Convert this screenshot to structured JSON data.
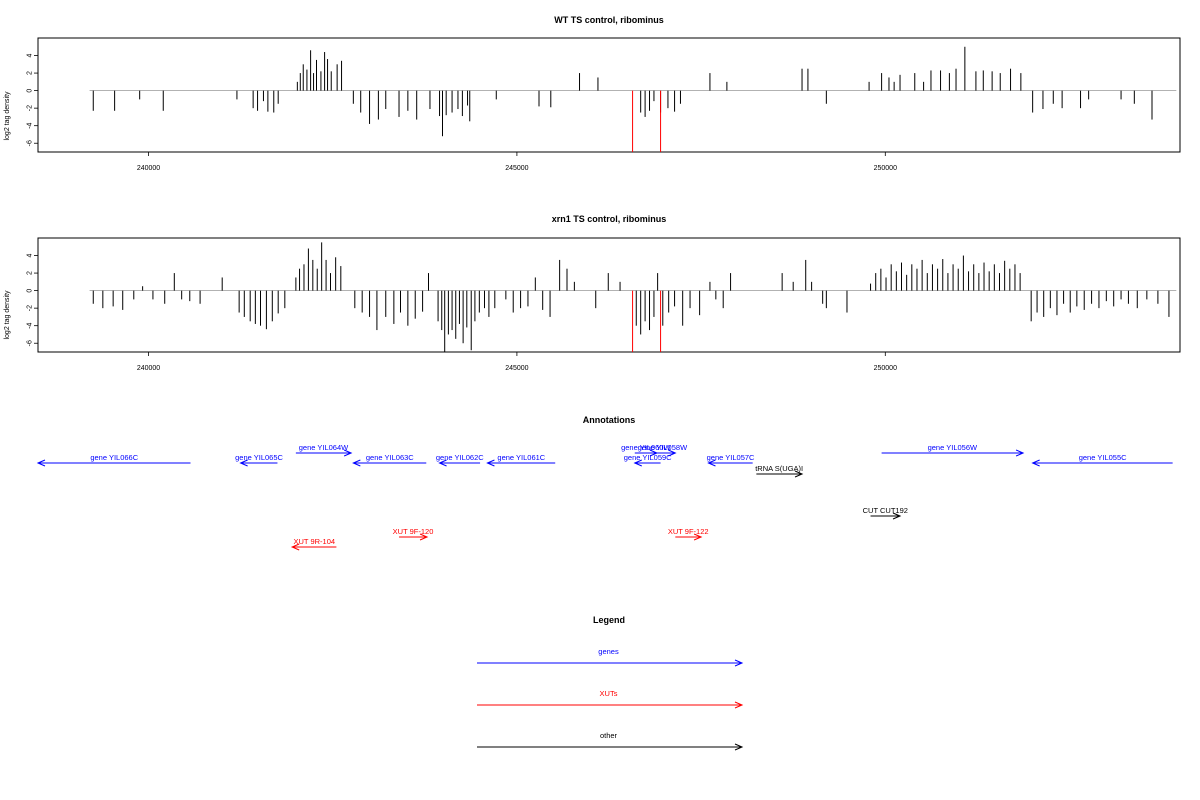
{
  "colors": {
    "gene": "#0000ff",
    "xut": "#ff0000",
    "other": "#000000",
    "sig_black": "#000000",
    "sig_red": "#ff0000",
    "baseline": "#999999"
  },
  "chart_data": [
    {
      "type": "bar",
      "title": "WT TS control, ribominus",
      "ylabel": "log2 tag density",
      "xlim": [
        238500,
        254000
      ],
      "ylim": [
        -7,
        6
      ],
      "xticks": [
        240000,
        245000,
        250000
      ],
      "xtick_labels": [
        "240000",
        "245000",
        "250000"
      ],
      "yticks": [
        4,
        2,
        0,
        -2,
        -4,
        -6
      ],
      "ytick_labels": [
        "4",
        "2",
        "0",
        "-2",
        "-4",
        "-6"
      ],
      "baseline_range": [
        239200,
        253950
      ],
      "bars": [
        {
          "x": 239250,
          "y": -2.3
        },
        {
          "x": 239540,
          "y": -2.3
        },
        {
          "x": 239880,
          "y": -1.0
        },
        {
          "x": 240200,
          "y": -2.3
        },
        {
          "x": 241200,
          "y": -1.0
        },
        {
          "x": 241420,
          "y": -2.0
        },
        {
          "x": 241480,
          "y": -2.3
        },
        {
          "x": 241560,
          "y": -1.2
        },
        {
          "x": 241620,
          "y": -2.4
        },
        {
          "x": 241700,
          "y": -2.5
        },
        {
          "x": 241760,
          "y": -1.5
        },
        {
          "x": 242020,
          "y": 1.0
        },
        {
          "x": 242060,
          "y": 2.0
        },
        {
          "x": 242100,
          "y": 3.0
        },
        {
          "x": 242150,
          "y": 2.4
        },
        {
          "x": 242200,
          "y": 4.6
        },
        {
          "x": 242240,
          "y": 2.0
        },
        {
          "x": 242280,
          "y": 3.5
        },
        {
          "x": 242340,
          "y": 2.2
        },
        {
          "x": 242390,
          "y": 4.4
        },
        {
          "x": 242430,
          "y": 3.6
        },
        {
          "x": 242480,
          "y": 2.2
        },
        {
          "x": 242560,
          "y": 3.0
        },
        {
          "x": 242620,
          "y": 3.4
        },
        {
          "x": 242780,
          "y": -1.5
        },
        {
          "x": 242880,
          "y": -2.5
        },
        {
          "x": 243000,
          "y": -3.8
        },
        {
          "x": 243120,
          "y": -3.3
        },
        {
          "x": 243220,
          "y": -2.1
        },
        {
          "x": 243400,
          "y": -3.0
        },
        {
          "x": 243520,
          "y": -2.3
        },
        {
          "x": 243640,
          "y": -3.3
        },
        {
          "x": 243820,
          "y": -2.1
        },
        {
          "x": 243950,
          "y": -2.9
        },
        {
          "x": 243990,
          "y": -5.2
        },
        {
          "x": 244040,
          "y": -2.8
        },
        {
          "x": 244120,
          "y": -2.5
        },
        {
          "x": 244200,
          "y": -2.1
        },
        {
          "x": 244260,
          "y": -2.9
        },
        {
          "x": 244330,
          "y": -1.7
        },
        {
          "x": 244360,
          "y": -3.5
        },
        {
          "x": 244720,
          "y": -1.0
        },
        {
          "x": 245300,
          "y": -1.8
        },
        {
          "x": 245460,
          "y": -1.9
        },
        {
          "x": 245850,
          "y": 2.0
        },
        {
          "x": 246100,
          "y": 1.5
        },
        {
          "x": 246680,
          "y": -2.5
        },
        {
          "x": 246740,
          "y": -3.0
        },
        {
          "x": 246800,
          "y": -2.3
        },
        {
          "x": 246860,
          "y": -1.2
        },
        {
          "x": 246950,
          "y": -2.5
        },
        {
          "x": 247050,
          "y": -2.0
        },
        {
          "x": 247140,
          "y": -2.4
        },
        {
          "x": 247220,
          "y": -1.5
        },
        {
          "x": 247620,
          "y": 2.0
        },
        {
          "x": 247850,
          "y": 1.0
        },
        {
          "x": 248870,
          "y": 2.5
        },
        {
          "x": 248950,
          "y": 2.5
        },
        {
          "x": 249200,
          "y": -1.5
        },
        {
          "x": 249780,
          "y": 1.0
        },
        {
          "x": 249950,
          "y": 2.0
        },
        {
          "x": 250050,
          "y": 1.5
        },
        {
          "x": 250120,
          "y": 1.0
        },
        {
          "x": 250200,
          "y": 1.8
        },
        {
          "x": 250400,
          "y": 2.0
        },
        {
          "x": 250520,
          "y": 1.0
        },
        {
          "x": 250620,
          "y": 2.3
        },
        {
          "x": 250750,
          "y": 2.3
        },
        {
          "x": 250870,
          "y": 2.0
        },
        {
          "x": 250960,
          "y": 2.5
        },
        {
          "x": 251080,
          "y": 5.0
        },
        {
          "x": 251230,
          "y": 2.2
        },
        {
          "x": 251330,
          "y": 2.3
        },
        {
          "x": 251450,
          "y": 2.2
        },
        {
          "x": 251560,
          "y": 2.0
        },
        {
          "x": 251700,
          "y": 2.5
        },
        {
          "x": 251840,
          "y": 2.0
        },
        {
          "x": 252000,
          "y": -2.5
        },
        {
          "x": 252140,
          "y": -2.1
        },
        {
          "x": 252280,
          "y": -1.5
        },
        {
          "x": 252400,
          "y": -2.0
        },
        {
          "x": 252650,
          "y": -2.0
        },
        {
          "x": 252760,
          "y": -1.0
        },
        {
          "x": 253200,
          "y": -1.0
        },
        {
          "x": 253380,
          "y": -1.5
        },
        {
          "x": 253620,
          "y": -3.3
        }
      ],
      "red_bars": [
        {
          "x": 246570,
          "y": -7.0
        },
        {
          "x": 246950,
          "y": -7.0
        }
      ]
    },
    {
      "type": "bar",
      "title": "xrn1 TS control, ribominus",
      "ylabel": "log2 tag density",
      "xlim": [
        238500,
        254000
      ],
      "ylim": [
        -7,
        6
      ],
      "xticks": [
        240000,
        245000,
        250000
      ],
      "xtick_labels": [
        "240000",
        "245000",
        "250000"
      ],
      "yticks": [
        4,
        2,
        0,
        -2,
        -4,
        -6
      ],
      "ytick_labels": [
        "4",
        "2",
        "0",
        "-2",
        "-4",
        "-6"
      ],
      "baseline_range": [
        239200,
        253950
      ],
      "bars": [
        {
          "x": 239250,
          "y": -1.5
        },
        {
          "x": 239380,
          "y": -2.0
        },
        {
          "x": 239520,
          "y": -1.8
        },
        {
          "x": 239650,
          "y": -2.2
        },
        {
          "x": 239800,
          "y": -1.0
        },
        {
          "x": 239920,
          "y": 0.5
        },
        {
          "x": 240060,
          "y": -1.0
        },
        {
          "x": 240220,
          "y": -1.5
        },
        {
          "x": 240350,
          "y": 2.0
        },
        {
          "x": 240450,
          "y": -1.0
        },
        {
          "x": 240560,
          "y": -1.2
        },
        {
          "x": 240700,
          "y": -1.5
        },
        {
          "x": 241000,
          "y": 1.5
        },
        {
          "x": 241230,
          "y": -2.5
        },
        {
          "x": 241300,
          "y": -3.0
        },
        {
          "x": 241380,
          "y": -3.5
        },
        {
          "x": 241450,
          "y": -3.8
        },
        {
          "x": 241520,
          "y": -4.0
        },
        {
          "x": 241600,
          "y": -4.4
        },
        {
          "x": 241680,
          "y": -3.5
        },
        {
          "x": 241760,
          "y": -2.6
        },
        {
          "x": 241850,
          "y": -2.0
        },
        {
          "x": 242000,
          "y": 1.5
        },
        {
          "x": 242050,
          "y": 2.5
        },
        {
          "x": 242110,
          "y": 3.0
        },
        {
          "x": 242170,
          "y": 4.8
        },
        {
          "x": 242230,
          "y": 3.5
        },
        {
          "x": 242290,
          "y": 2.5
        },
        {
          "x": 242350,
          "y": 5.5
        },
        {
          "x": 242410,
          "y": 3.5
        },
        {
          "x": 242470,
          "y": 2.0
        },
        {
          "x": 242540,
          "y": 3.8
        },
        {
          "x": 242610,
          "y": 2.8
        },
        {
          "x": 242800,
          "y": -2.0
        },
        {
          "x": 242900,
          "y": -2.5
        },
        {
          "x": 243000,
          "y": -3.0
        },
        {
          "x": 243100,
          "y": -4.5
        },
        {
          "x": 243220,
          "y": -3.0
        },
        {
          "x": 243330,
          "y": -3.8
        },
        {
          "x": 243420,
          "y": -2.5
        },
        {
          "x": 243520,
          "y": -4.0
        },
        {
          "x": 243620,
          "y": -3.2
        },
        {
          "x": 243720,
          "y": -2.4
        },
        {
          "x": 243800,
          "y": 2.0
        },
        {
          "x": 243930,
          "y": -3.5
        },
        {
          "x": 243980,
          "y": -4.5
        },
        {
          "x": 244020,
          "y": -7.0
        },
        {
          "x": 244070,
          "y": -5.0
        },
        {
          "x": 244120,
          "y": -4.5
        },
        {
          "x": 244170,
          "y": -5.5
        },
        {
          "x": 244220,
          "y": -3.8
        },
        {
          "x": 244270,
          "y": -6.0
        },
        {
          "x": 244320,
          "y": -4.2
        },
        {
          "x": 244380,
          "y": -6.8
        },
        {
          "x": 244430,
          "y": -3.5
        },
        {
          "x": 244490,
          "y": -2.5
        },
        {
          "x": 244560,
          "y": -2.0
        },
        {
          "x": 244620,
          "y": -3.0
        },
        {
          "x": 244700,
          "y": -2.0
        },
        {
          "x": 244850,
          "y": -1.0
        },
        {
          "x": 244950,
          "y": -2.5
        },
        {
          "x": 245050,
          "y": -2.0
        },
        {
          "x": 245150,
          "y": -1.8
        },
        {
          "x": 245250,
          "y": 1.5
        },
        {
          "x": 245350,
          "y": -2.2
        },
        {
          "x": 245450,
          "y": -3.0
        },
        {
          "x": 245580,
          "y": 3.5
        },
        {
          "x": 245680,
          "y": 2.5
        },
        {
          "x": 245780,
          "y": 1.0
        },
        {
          "x": 246070,
          "y": -2.0
        },
        {
          "x": 246240,
          "y": 2.0
        },
        {
          "x": 246400,
          "y": 1.0
        },
        {
          "x": 246620,
          "y": -4.0
        },
        {
          "x": 246680,
          "y": -5.0
        },
        {
          "x": 246740,
          "y": -3.5
        },
        {
          "x": 246800,
          "y": -4.5
        },
        {
          "x": 246860,
          "y": -3.0
        },
        {
          "x": 246910,
          "y": 2.0
        },
        {
          "x": 246980,
          "y": -4.0
        },
        {
          "x": 247060,
          "y": -2.5
        },
        {
          "x": 247140,
          "y": -1.8
        },
        {
          "x": 247250,
          "y": -4.0
        },
        {
          "x": 247350,
          "y": -2.0
        },
        {
          "x": 247480,
          "y": -2.8
        },
        {
          "x": 247620,
          "y": 1.0
        },
        {
          "x": 247700,
          "y": -1.0
        },
        {
          "x": 247800,
          "y": -2.0
        },
        {
          "x": 247900,
          "y": 2.0
        },
        {
          "x": 248600,
          "y": 2.0
        },
        {
          "x": 248750,
          "y": 1.0
        },
        {
          "x": 248920,
          "y": 3.5
        },
        {
          "x": 249000,
          "y": 1.0
        },
        {
          "x": 249150,
          "y": -1.5
        },
        {
          "x": 249200,
          "y": -2.0
        },
        {
          "x": 249480,
          "y": -2.5
        },
        {
          "x": 249800,
          "y": 0.8
        },
        {
          "x": 249870,
          "y": 2.0
        },
        {
          "x": 249940,
          "y": 2.5
        },
        {
          "x": 250010,
          "y": 1.5
        },
        {
          "x": 250080,
          "y": 3.0
        },
        {
          "x": 250150,
          "y": 2.2
        },
        {
          "x": 250220,
          "y": 3.2
        },
        {
          "x": 250290,
          "y": 1.8
        },
        {
          "x": 250360,
          "y": 3.0
        },
        {
          "x": 250430,
          "y": 2.5
        },
        {
          "x": 250500,
          "y": 3.5
        },
        {
          "x": 250570,
          "y": 2.0
        },
        {
          "x": 250640,
          "y": 3.0
        },
        {
          "x": 250710,
          "y": 2.5
        },
        {
          "x": 250780,
          "y": 3.6
        },
        {
          "x": 250850,
          "y": 2.0
        },
        {
          "x": 250920,
          "y": 3.0
        },
        {
          "x": 250990,
          "y": 2.5
        },
        {
          "x": 251060,
          "y": 4.0
        },
        {
          "x": 251130,
          "y": 2.2
        },
        {
          "x": 251200,
          "y": 3.0
        },
        {
          "x": 251270,
          "y": 2.0
        },
        {
          "x": 251340,
          "y": 3.2
        },
        {
          "x": 251410,
          "y": 2.2
        },
        {
          "x": 251480,
          "y": 3.0
        },
        {
          "x": 251550,
          "y": 2.0
        },
        {
          "x": 251620,
          "y": 3.4
        },
        {
          "x": 251690,
          "y": 2.5
        },
        {
          "x": 251760,
          "y": 3.0
        },
        {
          "x": 251830,
          "y": 2.0
        },
        {
          "x": 251980,
          "y": -3.5
        },
        {
          "x": 252060,
          "y": -2.5
        },
        {
          "x": 252150,
          "y": -3.0
        },
        {
          "x": 252240,
          "y": -2.0
        },
        {
          "x": 252330,
          "y": -2.8
        },
        {
          "x": 252420,
          "y": -1.5
        },
        {
          "x": 252510,
          "y": -2.5
        },
        {
          "x": 252600,
          "y": -1.8
        },
        {
          "x": 252700,
          "y": -2.2
        },
        {
          "x": 252800,
          "y": -1.5
        },
        {
          "x": 252900,
          "y": -2.0
        },
        {
          "x": 253000,
          "y": -1.2
        },
        {
          "x": 253100,
          "y": -1.8
        },
        {
          "x": 253200,
          "y": -1.0
        },
        {
          "x": 253300,
          "y": -1.5
        },
        {
          "x": 253420,
          "y": -2.0
        },
        {
          "x": 253550,
          "y": -1.0
        },
        {
          "x": 253700,
          "y": -1.5
        },
        {
          "x": 253850,
          "y": -3.0
        }
      ],
      "red_bars": [
        {
          "x": 246570,
          "y": -7.0
        },
        {
          "x": 246950,
          "y": -7.0
        }
      ]
    }
  ],
  "annotations": {
    "title": "Annotations",
    "xlim": [
      238500,
      254000
    ],
    "features": [
      {
        "label": "gene YIL066C",
        "kind": "gene",
        "start": 238500,
        "end": 240570,
        "strand": "-",
        "row": 1
      },
      {
        "label": "gene YIL065C",
        "kind": "gene",
        "start": 241250,
        "end": 241750,
        "strand": "-",
        "row": 1
      },
      {
        "label": "gene YIL064W",
        "kind": "gene",
        "start": 242000,
        "end": 242750,
        "strand": "+",
        "row": 0
      },
      {
        "label": "gene YIL063C",
        "kind": "gene",
        "start": 242780,
        "end": 243770,
        "strand": "-",
        "row": 1
      },
      {
        "label": "gene YIL062C",
        "kind": "gene",
        "start": 243950,
        "end": 244500,
        "strand": "-",
        "row": 1
      },
      {
        "label": "gene YIL061C",
        "kind": "gene",
        "start": 244600,
        "end": 245520,
        "strand": "-",
        "row": 1
      },
      {
        "label": "gene YIL060W",
        "kind": "gene",
        "start": 246600,
        "end": 246900,
        "strand": "+",
        "row": 0
      },
      {
        "label": "gene YIL058W",
        "kind": "gene",
        "start": 246800,
        "end": 247150,
        "strand": "+",
        "row": 0
      },
      {
        "label": "gene YIL059C",
        "kind": "gene",
        "start": 246600,
        "end": 246950,
        "strand": "-",
        "row": 1
      },
      {
        "label": "gene YIL057C",
        "kind": "gene",
        "start": 247600,
        "end": 248200,
        "strand": "-",
        "row": 1
      },
      {
        "label": "tRNA S(UGA)I",
        "kind": "other",
        "start": 248250,
        "end": 248870,
        "strand": "+",
        "row": 2
      },
      {
        "label": "gene YIL056W",
        "kind": "gene",
        "start": 249950,
        "end": 251870,
        "strand": "+",
        "row": 0
      },
      {
        "label": "gene YIL055C",
        "kind": "gene",
        "start": 252000,
        "end": 253900,
        "strand": "-",
        "row": 1
      },
      {
        "label": "CUT CUT192",
        "kind": "other",
        "start": 249800,
        "end": 250200,
        "strand": "+",
        "row": 3
      },
      {
        "label": "XUT 9F-120",
        "kind": "xut",
        "start": 243400,
        "end": 243780,
        "strand": "+",
        "row": 4
      },
      {
        "label": "XUT 9F-122",
        "kind": "xut",
        "start": 247150,
        "end": 247500,
        "strand": "+",
        "row": 4
      },
      {
        "label": "XUT 9R-104",
        "kind": "xut",
        "start": 241950,
        "end": 242550,
        "strand": "-",
        "row": 5
      }
    ]
  },
  "legend": {
    "title": "Legend",
    "items": [
      {
        "label": "genes",
        "kind": "gene"
      },
      {
        "label": "XUTs",
        "kind": "xut"
      },
      {
        "label": "other",
        "kind": "other"
      }
    ]
  }
}
